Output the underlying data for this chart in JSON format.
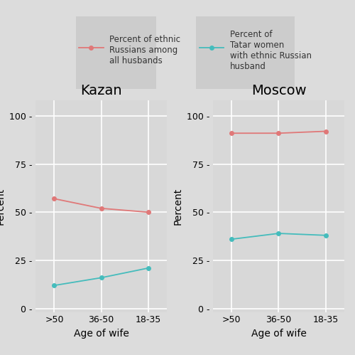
{
  "kazan": {
    "title": "Kazan",
    "x_labels": [
      ">50",
      "36-50",
      "18-35"
    ],
    "russian_among_husbands": [
      57,
      52,
      50
    ],
    "tatar_women_russian_husband": [
      12,
      16,
      21
    ]
  },
  "moscow": {
    "title": "Moscow",
    "x_labels": [
      ">50",
      "36-50",
      "18-35"
    ],
    "russian_among_husbands": [
      91,
      91,
      92
    ],
    "tatar_women_russian_husband": [
      36,
      39,
      38
    ]
  },
  "colors": {
    "russian_among_husbands": "#E07878",
    "tatar_women_russian_husband": "#45BCBC"
  },
  "legend": {
    "label1": "Percent of ethnic\nRussians among\nall husbands",
    "label2": "Percent of\nTatar women\nwith ethnic Russian\nhusband"
  },
  "ylabel": "Percent",
  "xlabel": "Age of wife",
  "ylim": [
    -2,
    108
  ],
  "yticks": [
    0,
    25,
    50,
    75,
    100
  ],
  "ytick_labels": [
    "0 -",
    "25 -",
    "50 -",
    "75 -",
    "100 -"
  ],
  "outer_bg": "#DCDCDC",
  "panel_bg": "#D8D8D8",
  "grid_color": "#FFFFFF",
  "marker": "o",
  "markersize": 4,
  "linewidth": 1.3,
  "title_fontsize": 14,
  "label_fontsize": 9,
  "axis_label_fontsize": 10,
  "legend_fontsize": 8.5
}
